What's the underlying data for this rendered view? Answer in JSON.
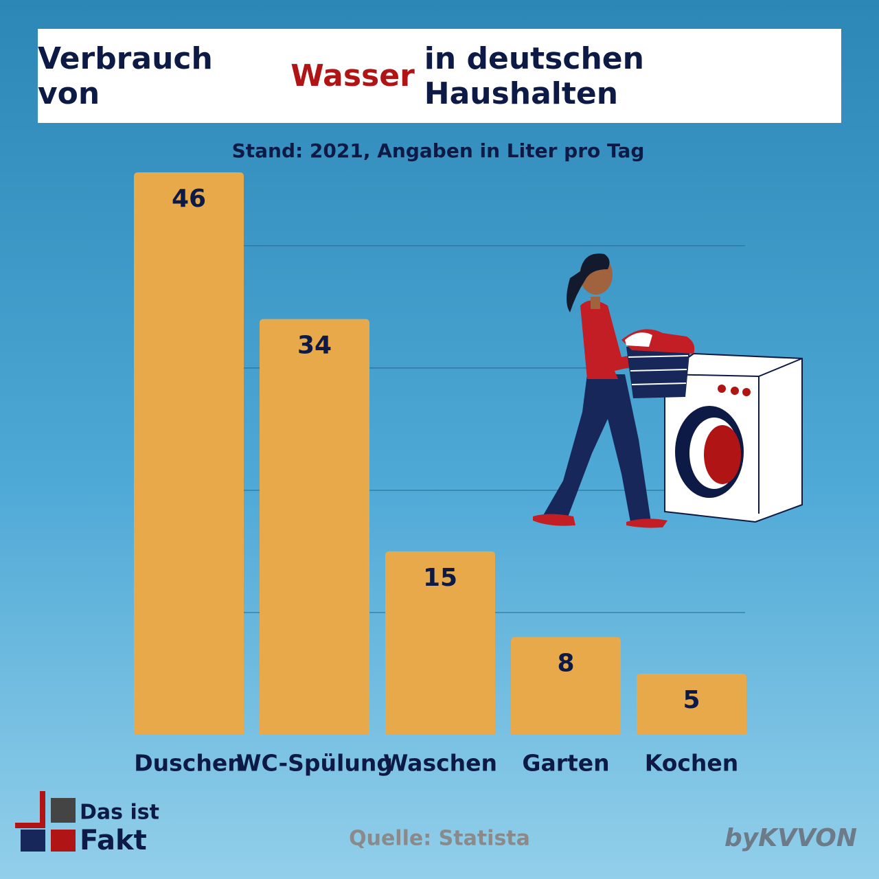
{
  "chart_data": {
    "type": "bar",
    "title": [
      "Verbrauch von",
      "Wasser",
      "in deutschen Haushalten"
    ],
    "title_colors": [
      "#0d1a45",
      "#b01414",
      "#0d1a45"
    ],
    "subtitle": "Stand: 2021, Angaben in Liter pro Tag",
    "categories": [
      "Duschen",
      "WC-Spülung",
      "Waschen",
      "Garten",
      "Kochen"
    ],
    "values": [
      46,
      34,
      15,
      8,
      5
    ],
    "color": "#e8a94a",
    "ylim": [
      0,
      46
    ],
    "yticks": [
      10,
      20,
      30,
      40
    ],
    "grid": true,
    "source": "Quelle: Statista"
  },
  "branding": {
    "logo": [
      "Das ist",
      "Fakt"
    ],
    "credit": "byKVVON"
  }
}
